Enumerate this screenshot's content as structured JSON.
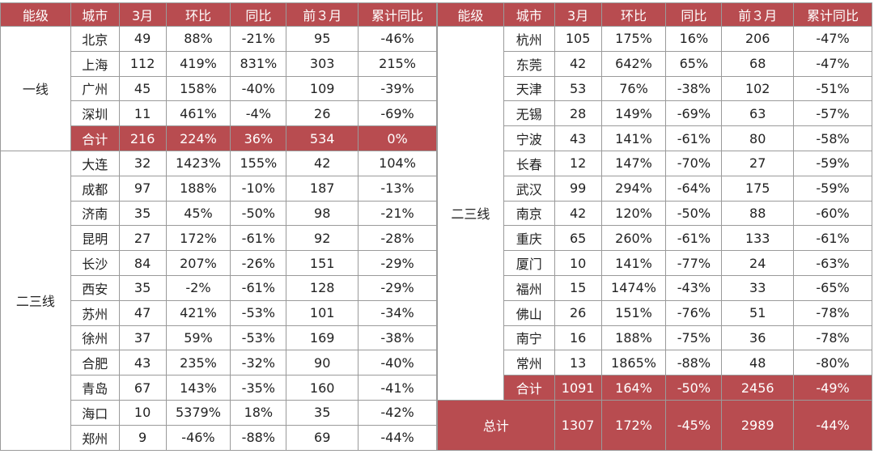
{
  "chart_data": {
    "type": "table",
    "columns": [
      "能级",
      "城市",
      "3月",
      "环比",
      "同比",
      "前３月",
      "累计同比"
    ],
    "left": {
      "tier1": {
        "label": "一线",
        "rows": [
          [
            "北京",
            "49",
            "88%",
            "-21%",
            "95",
            "-46%"
          ],
          [
            "上海",
            "112",
            "419%",
            "831%",
            "303",
            "215%"
          ],
          [
            "广州",
            "45",
            "158%",
            "-40%",
            "109",
            "-39%"
          ],
          [
            "深圳",
            "11",
            "461%",
            "-4%",
            "26",
            "-69%"
          ]
        ],
        "subtotal": [
          "合计",
          "216",
          "224%",
          "36%",
          "534",
          "0%"
        ]
      },
      "tier23": {
        "label": "二三线",
        "rows": [
          [
            "大连",
            "32",
            "1423%",
            "155%",
            "42",
            "104%"
          ],
          [
            "成都",
            "97",
            "188%",
            "-10%",
            "187",
            "-13%"
          ],
          [
            "济南",
            "35",
            "45%",
            "-50%",
            "98",
            "-21%"
          ],
          [
            "昆明",
            "27",
            "172%",
            "-61%",
            "92",
            "-28%"
          ],
          [
            "长沙",
            "84",
            "207%",
            "-26%",
            "151",
            "-29%"
          ],
          [
            "西安",
            "35",
            "-2%",
            "-61%",
            "128",
            "-29%"
          ],
          [
            "苏州",
            "47",
            "421%",
            "-53%",
            "101",
            "-34%"
          ],
          [
            "徐州",
            "37",
            "59%",
            "-53%",
            "169",
            "-38%"
          ],
          [
            "合肥",
            "43",
            "235%",
            "-32%",
            "90",
            "-40%"
          ],
          [
            "青岛",
            "67",
            "143%",
            "-35%",
            "160",
            "-41%"
          ],
          [
            "海口",
            "10",
            "5379%",
            "18%",
            "35",
            "-42%"
          ],
          [
            "郑州",
            "9",
            "-46%",
            "-88%",
            "69",
            "-44%"
          ]
        ]
      }
    },
    "right": {
      "tier23": {
        "label": "二三线",
        "rows": [
          [
            "杭州",
            "105",
            "175%",
            "16%",
            "206",
            "-47%"
          ],
          [
            "东莞",
            "42",
            "642%",
            "65%",
            "68",
            "-47%"
          ],
          [
            "天津",
            "53",
            "76%",
            "-38%",
            "102",
            "-51%"
          ],
          [
            "无锡",
            "28",
            "149%",
            "-69%",
            "63",
            "-57%"
          ],
          [
            "宁波",
            "43",
            "141%",
            "-61%",
            "80",
            "-58%"
          ],
          [
            "长春",
            "12",
            "147%",
            "-70%",
            "27",
            "-59%"
          ],
          [
            "武汉",
            "99",
            "294%",
            "-64%",
            "175",
            "-59%"
          ],
          [
            "南京",
            "42",
            "120%",
            "-50%",
            "88",
            "-60%"
          ],
          [
            "重庆",
            "65",
            "260%",
            "-61%",
            "133",
            "-61%"
          ],
          [
            "厦门",
            "10",
            "141%",
            "-77%",
            "24",
            "-63%"
          ],
          [
            "福州",
            "15",
            "1474%",
            "-43%",
            "33",
            "-65%"
          ],
          [
            "佛山",
            "26",
            "151%",
            "-76%",
            "51",
            "-78%"
          ],
          [
            "南宁",
            "16",
            "188%",
            "-75%",
            "36",
            "-78%"
          ],
          [
            "常州",
            "13",
            "1865%",
            "-88%",
            "48",
            "-80%"
          ]
        ],
        "subtotal": [
          "合计",
          "1091",
          "164%",
          "-50%",
          "2456",
          "-49%"
        ]
      },
      "total": {
        "label": "总计",
        "values": [
          "1307",
          "172%",
          "-45%",
          "2989",
          "-44%"
        ]
      }
    },
    "colors": {
      "header": "#b84c50",
      "subtotal": "#b84c50",
      "border": "#9a9a9a"
    }
  }
}
